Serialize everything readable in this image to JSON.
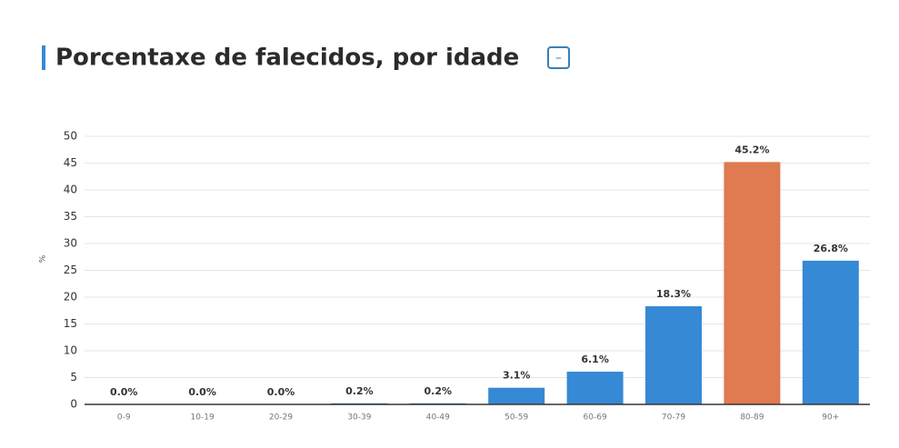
{
  "chart_data": {
    "type": "bar",
    "title": "Porcentaxe de falecidos, por idade",
    "y_label": "%",
    "categories": [
      "0-9",
      "10-19",
      "20-29",
      "30-39",
      "40-49",
      "50-59",
      "60-69",
      "70-79",
      "80-89",
      "90+"
    ],
    "values": [
      0,
      0,
      0,
      0.2,
      0.2,
      3.1,
      6.1,
      18.3,
      45.2,
      26.8
    ],
    "value_labels": [
      "0.0%",
      "0.0%",
      "0.0%",
      "0.2%",
      "0.2%",
      "3.1%",
      "6.1%",
      "18.3%",
      "45.2%",
      "26.8%"
    ],
    "colors": [
      "#3689d4",
      "#3689d4",
      "#3689d4",
      "#3689d4",
      "#3689d4",
      "#3689d4",
      "#3689d4",
      "#3689d4",
      "#e07a50",
      "#3689d4"
    ],
    "ylim": [
      0,
      50
    ],
    "yticks": [
      0,
      5,
      10,
      15,
      20,
      25,
      30,
      35,
      40,
      45,
      50
    ],
    "grid": true
  },
  "toggle_button": "–"
}
